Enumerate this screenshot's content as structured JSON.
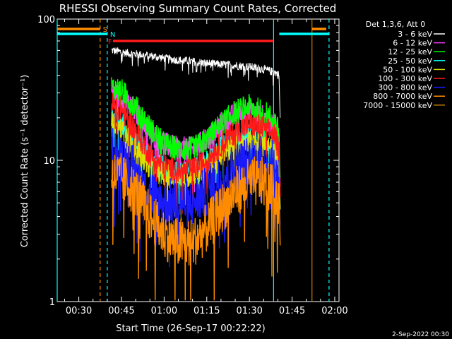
{
  "chart_data": {
    "type": "line",
    "title": "RHESSI Observing Summary Count Rates, Corrected",
    "xlabel": "Start Time (26-Sep-17 00:22:22)",
    "ylabel": "Corrected Count Rate (s⁻¹ detector⁻¹)",
    "xlim_minutes": [
      22.4,
      121.5
    ],
    "ylim": [
      1,
      100
    ],
    "yscale": "log",
    "x_ticks": [
      {
        "label": "00:30",
        "minutes": 30
      },
      {
        "label": "00:45",
        "minutes": 45
      },
      {
        "label": "01:00",
        "minutes": 60
      },
      {
        "label": "01:15",
        "minutes": 75
      },
      {
        "label": "01:30",
        "minutes": 90
      },
      {
        "label": "01:45",
        "minutes": 105
      },
      {
        "label": "02:00",
        "minutes": 120
      }
    ],
    "y_ticks": [
      {
        "label": "1",
        "value": 1
      },
      {
        "label": "10",
        "value": 10
      },
      {
        "label": "100",
        "value": 100
      }
    ],
    "legend_header": "Det 1,3,6, Att 0",
    "legend_position": "right",
    "series": [
      {
        "name": "3 - 6 keV",
        "color": "#ffffff",
        "x": [
          41.5,
          48,
          55,
          62,
          70,
          78,
          85,
          90,
          95,
          99,
          100.5
        ],
        "y": [
          60,
          57,
          55,
          52,
          50,
          48,
          47,
          46,
          44,
          42,
          40
        ]
      },
      {
        "name": "6 - 12 keV",
        "color": "#ff3cff",
        "x": [
          41.5,
          45,
          50,
          55,
          60,
          65,
          70,
          75,
          80,
          85,
          90,
          95,
          99,
          100.5
        ],
        "y": [
          30,
          28,
          22,
          16,
          13,
          12,
          12,
          14,
          18,
          21,
          22,
          20,
          17,
          13
        ]
      },
      {
        "name": "12 - 25 keV",
        "color": "#00ff00",
        "x": [
          41.5,
          45,
          50,
          55,
          60,
          65,
          70,
          75,
          80,
          85,
          90,
          95,
          99,
          100.5
        ],
        "y": [
          33,
          31,
          24,
          17,
          13,
          12,
          12,
          14,
          18,
          22,
          24,
          22,
          19,
          15
        ]
      },
      {
        "name": "25 - 50 keV",
        "color": "#00ffff",
        "x": [
          41.5,
          45,
          50,
          55,
          60,
          65,
          70,
          75,
          80,
          85,
          90,
          95,
          99,
          100.5
        ],
        "y": [
          21,
          19,
          14,
          10.5,
          8.5,
          8,
          8.2,
          9.5,
          12,
          14,
          15,
          14,
          12,
          9
        ]
      },
      {
        "name": "50 - 100 keV",
        "color": "#e0e000",
        "x": [
          41.5,
          45,
          50,
          55,
          60,
          65,
          70,
          75,
          80,
          85,
          90,
          95,
          99,
          100.5
        ],
        "y": [
          18,
          16,
          12,
          9,
          8,
          7.5,
          8,
          9,
          11,
          13,
          14,
          13,
          11,
          9
        ]
      },
      {
        "name": "100 - 300 keV",
        "color": "#ff1a1a",
        "x": [
          41.5,
          45,
          50,
          55,
          60,
          65,
          70,
          75,
          80,
          85,
          90,
          95,
          99,
          100.5
        ],
        "y": [
          25,
          23,
          16,
          11,
          9,
          8.5,
          8.5,
          10,
          13,
          16,
          18,
          17,
          15,
          11
        ]
      },
      {
        "name": "300 - 800 keV",
        "color": "#1a1aff",
        "x": [
          41.5,
          45,
          50,
          55,
          60,
          65,
          70,
          75,
          80,
          85,
          90,
          95,
          99,
          100.5
        ],
        "y": [
          12,
          11,
          8,
          6,
          5,
          5,
          5,
          6,
          7.5,
          9,
          10,
          10,
          9,
          7
        ]
      },
      {
        "name": "800 - 7000 keV",
        "color": "#ff8c00",
        "x": [
          41.5,
          45,
          50,
          55,
          60,
          65,
          70,
          75,
          80,
          85,
          90,
          95,
          99,
          100.5
        ],
        "y": [
          8,
          7.5,
          6,
          4,
          3,
          2.6,
          2.6,
          3.3,
          4.5,
          6,
          7,
          7,
          6,
          5
        ]
      },
      {
        "name": "7000 - 15000 keV",
        "color": "#c08000",
        "x": [],
        "y": []
      }
    ],
    "attenuator_state_bars": [
      {
        "label": "S",
        "color": "#ff8c00",
        "from_min": 22.4,
        "to_min": 37.5
      },
      {
        "label": "",
        "color": "#ff8c00",
        "from_min": 112,
        "to_min": 117
      },
      {
        "label": "N",
        "color": "#00ffff",
        "from_min": 22.4,
        "to_min": 40
      },
      {
        "label": "",
        "color": "#00ffff",
        "from_min": 100.5,
        "to_min": 118
      },
      {
        "label": "F",
        "color": "#ff1a1a",
        "from_min": 42,
        "to_min": 98.5
      }
    ],
    "vertical_markers": [
      {
        "minutes": 22.4,
        "color": "#00ffff",
        "style": "solid"
      },
      {
        "minutes": 37.5,
        "color": "#ff8c00",
        "style": "dashed"
      },
      {
        "minutes": 40,
        "color": "#00ffff",
        "style": "dashed"
      },
      {
        "minutes": 98.5,
        "color": "#00ffff",
        "style": "solid"
      },
      {
        "minutes": 112,
        "color": "#c08000",
        "style": "solid"
      },
      {
        "minutes": 118,
        "color": "#00ffff",
        "style": "dashed"
      }
    ]
  },
  "footer": {
    "date": "2-Sep-2022 00:30"
  }
}
